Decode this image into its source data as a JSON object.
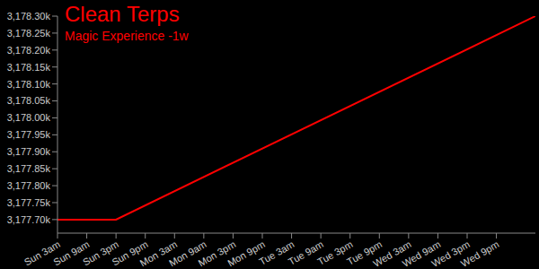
{
  "chart_data": {
    "type": "line",
    "title": "Clean Terps",
    "subtitle": "Magic Experience -1w",
    "x": [
      3,
      15,
      101
    ],
    "values": [
      3177700,
      3177700,
      3178300
    ],
    "color": "#ff0000",
    "xlim": [
      3,
      101
    ],
    "xticks": [
      {
        "value": 3,
        "label": "Sun 3am"
      },
      {
        "value": 9,
        "label": "Sun 9am"
      },
      {
        "value": 15,
        "label": "Sun 3pm"
      },
      {
        "value": 21,
        "label": "Sun 9pm"
      },
      {
        "value": 27,
        "label": "Mon 3am"
      },
      {
        "value": 33,
        "label": "Mon 9am"
      },
      {
        "value": 39,
        "label": "Mon 3pm"
      },
      {
        "value": 45,
        "label": "Mon 9pm"
      },
      {
        "value": 51,
        "label": "Tue 3am"
      },
      {
        "value": 57,
        "label": "Tue 9am"
      },
      {
        "value": 63,
        "label": "Tue 3pm"
      },
      {
        "value": 69,
        "label": "Tue 9pm"
      },
      {
        "value": 75,
        "label": "Wed 3am"
      },
      {
        "value": 81,
        "label": "Wed 9am"
      },
      {
        "value": 87,
        "label": "Wed 3pm"
      },
      {
        "value": 93,
        "label": "Wed 9pm"
      }
    ],
    "ylim": [
      3177660,
      3178300
    ],
    "yticks": [
      {
        "value": 3177700,
        "label": "3,177.70k"
      },
      {
        "value": 3177750,
        "label": "3,177.75k"
      },
      {
        "value": 3177800,
        "label": "3,177.80k"
      },
      {
        "value": 3177850,
        "label": "3,177.85k"
      },
      {
        "value": 3177900,
        "label": "3,177.90k"
      },
      {
        "value": 3177950,
        "label": "3,177.95k"
      },
      {
        "value": 3178000,
        "label": "3,178.00k"
      },
      {
        "value": 3178050,
        "label": "3,178.05k"
      },
      {
        "value": 3178100,
        "label": "3,178.10k"
      },
      {
        "value": 3178150,
        "label": "3,178.15k"
      },
      {
        "value": 3178200,
        "label": "3,178.20k"
      },
      {
        "value": 3178250,
        "label": "3,178.25k"
      },
      {
        "value": 3178300,
        "label": "3,178.30k"
      }
    ],
    "grid": false
  }
}
